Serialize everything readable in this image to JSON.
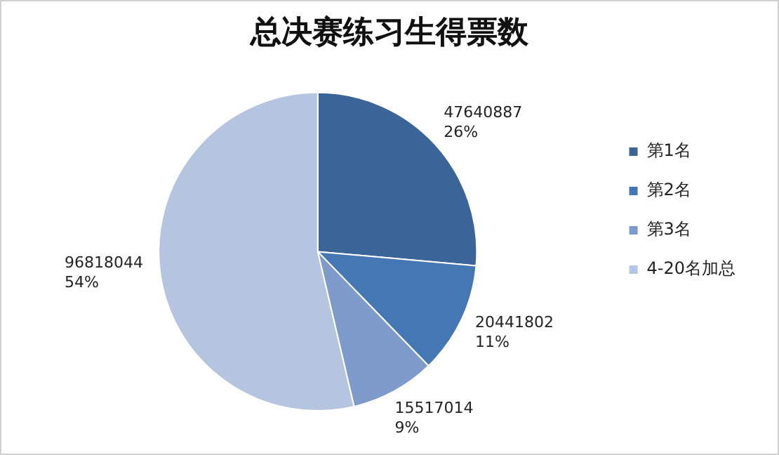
{
  "chart_data": {
    "type": "pie",
    "title": "总决赛练习生得票数",
    "categories": [
      "第1名",
      "第2名",
      "第3名",
      "4-20名加总"
    ],
    "values": [
      47640887,
      20441802,
      15517014,
      96818044
    ],
    "colors": [
      "#3b6499",
      "#4677b5",
      "#7e9bcb",
      "#b6c5df"
    ],
    "value_labels": [
      "47640887\n26%",
      "20441802\n11%",
      "15517014\n9%",
      "96818044\n54%"
    ],
    "legend": "right"
  }
}
